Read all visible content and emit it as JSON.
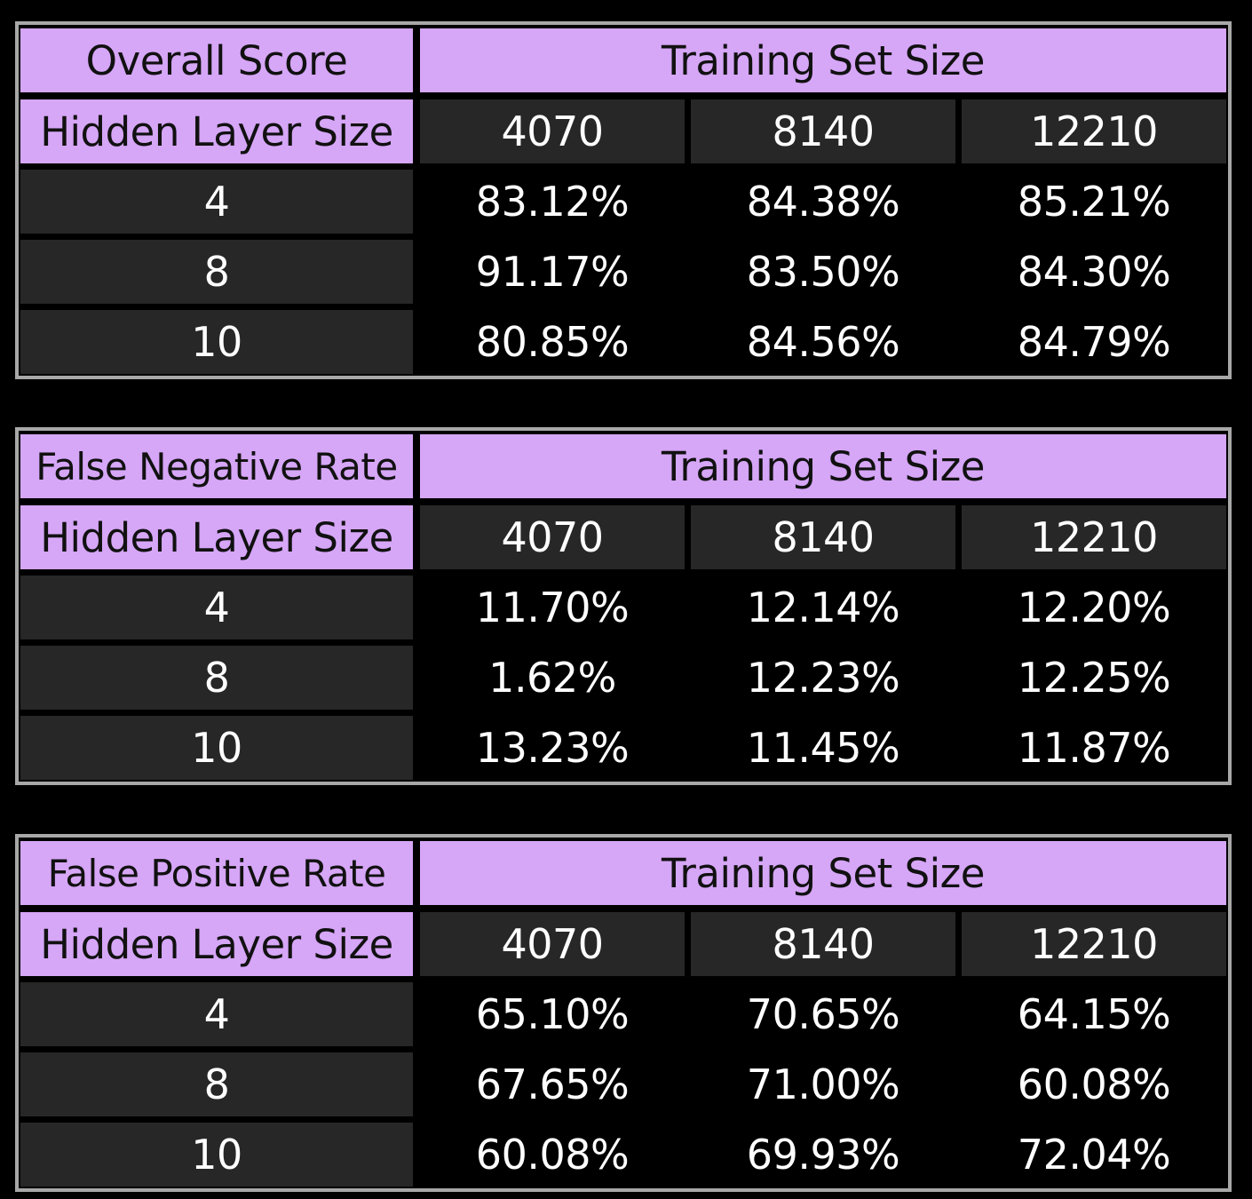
{
  "colors": {
    "header": "#d6a6f7",
    "cell_dark": "#272727",
    "background": "#000000",
    "border": "#a8a8a8"
  },
  "chart_data": [
    {
      "type": "table",
      "title": "Overall Score",
      "column_group": "Training Set Size",
      "row_header": "Hidden Layer Size",
      "columns": [
        "4070",
        "8140",
        "12210"
      ],
      "rows": [
        {
          "label": "4",
          "values": [
            "83.12%",
            "84.38%",
            "85.21%"
          ]
        },
        {
          "label": "8",
          "values": [
            "91.17%",
            "83.50%",
            "84.30%"
          ]
        },
        {
          "label": "10",
          "values": [
            "80.85%",
            "84.56%",
            "84.79%"
          ]
        }
      ]
    },
    {
      "type": "table",
      "title": "False Negative Rate",
      "column_group": "Training Set Size",
      "row_header": "Hidden Layer Size",
      "columns": [
        "4070",
        "8140",
        "12210"
      ],
      "rows": [
        {
          "label": "4",
          "values": [
            "11.70%",
            "12.14%",
            "12.20%"
          ]
        },
        {
          "label": "8",
          "values": [
            "1.62%",
            "12.23%",
            "12.25%"
          ]
        },
        {
          "label": "10",
          "values": [
            "13.23%",
            "11.45%",
            "11.87%"
          ]
        }
      ]
    },
    {
      "type": "table",
      "title": "False Positive Rate",
      "column_group": "Training Set Size",
      "row_header": "Hidden Layer Size",
      "columns": [
        "4070",
        "8140",
        "12210"
      ],
      "rows": [
        {
          "label": "4",
          "values": [
            "65.10%",
            "70.65%",
            "64.15%"
          ]
        },
        {
          "label": "8",
          "values": [
            "67.65%",
            "71.00%",
            "60.08%"
          ]
        },
        {
          "label": "10",
          "values": [
            "60.08%",
            "69.93%",
            "72.04%"
          ]
        }
      ]
    }
  ]
}
